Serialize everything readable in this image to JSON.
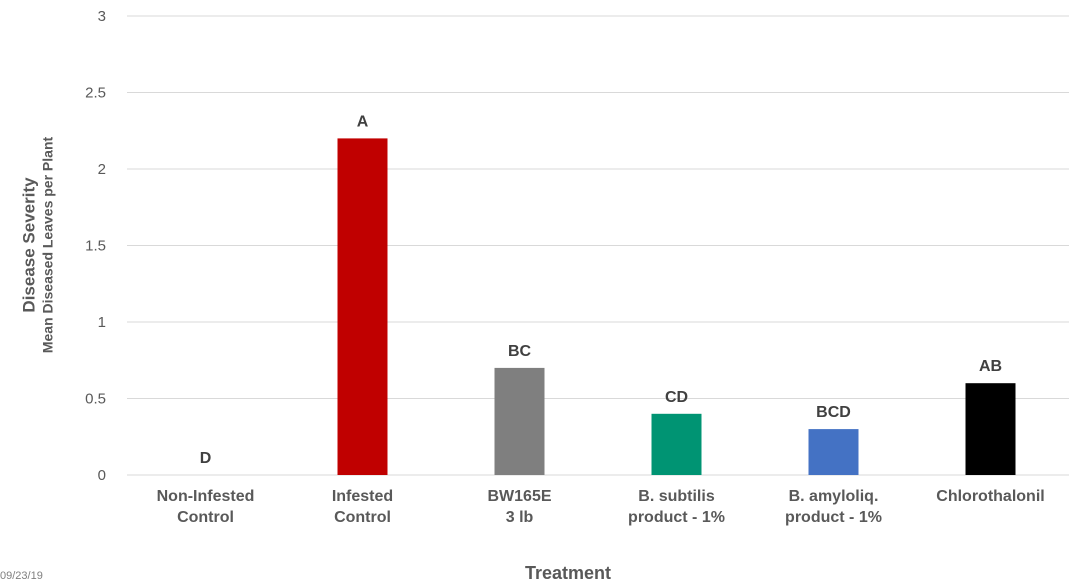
{
  "chart_data": {
    "type": "bar",
    "categories": [
      [
        "Non-Infested",
        "Control"
      ],
      [
        "Infested",
        "Control"
      ],
      [
        "BW165E",
        "3 lb"
      ],
      [
        "B. subtilis",
        "product - 1%"
      ],
      [
        "B. amyloliq.",
        "product - 1%"
      ],
      [
        "Chlorothalonil"
      ]
    ],
    "values": [
      0,
      2.2,
      0.7,
      0.4,
      0.3,
      0.6
    ],
    "data_labels": [
      "D",
      "A",
      "BC",
      "CD",
      "BCD",
      "AB"
    ],
    "colors": [
      "#ffffff",
      "#c00000",
      "#7f7f7f",
      "#009473",
      "#4472c4",
      "#000000"
    ],
    "ylim": [
      0,
      3
    ],
    "yticks": [
      "0",
      "0.5",
      "1",
      "1.5",
      "2",
      "2.5",
      "3"
    ],
    "ytick_values": [
      0,
      0.5,
      1,
      1.5,
      2,
      2.5,
      3
    ],
    "ylabel_line1": "Disease Severity",
    "ylabel_line2": "Mean Diseased Leaves per Plant",
    "xlabel": "Treatment",
    "grid": true
  },
  "footer": {
    "date": "09/23/19"
  }
}
